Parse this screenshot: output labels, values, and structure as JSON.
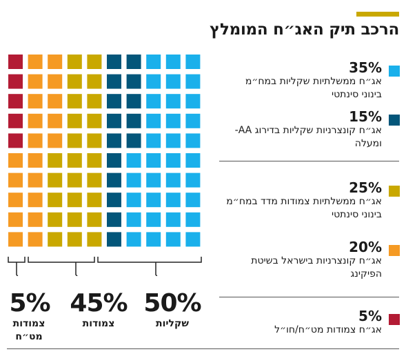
{
  "title": "הרכב תיק האג״ח המומלץ",
  "colors": {
    "accent": "#c9a800",
    "light_blue": "#1ab0eb",
    "dark_blue": "#03567a",
    "mustard": "#c9a800",
    "orange": "#f59a23",
    "crimson": "#b31b34"
  },
  "legend": [
    {
      "pct": "35%",
      "desc": "אג״ח ממשלתיות שקליות במח״מ בינוני סינתטי",
      "color": "#1ab0eb"
    },
    {
      "pct": "15%",
      "desc": "אג״ח קונצרניות שקליות בדירוג AA- ומעלה",
      "color": "#03567a"
    },
    {
      "pct": "25%",
      "desc": "אג״ח ממשלתיות צמודות מדד במח״מ בינוני סינתטי",
      "color": "#c9a800"
    },
    {
      "pct": "20%",
      "desc": "אג״ח קונצרניות בישראל בשיטת הפיקינג",
      "color": "#f59a23"
    },
    {
      "pct": "5%",
      "desc": "אג״ח צמודות מט״ח/חו״ל",
      "color": "#b31b34"
    }
  ],
  "groups": [
    {
      "pct": "50%",
      "label": "שקליות"
    },
    {
      "pct": "45%",
      "label": "צמודות"
    },
    {
      "pct": "5%",
      "label": "צמודות מט״ח"
    }
  ],
  "chart_data": {
    "type": "waffle",
    "grid": {
      "rows": 10,
      "cols": 10
    },
    "title": "הרכב תיק האג״ח המומלץ",
    "series": [
      {
        "name": "אג״ח ממשלתיות שקליות במח״מ בינוני סינתטי",
        "value": 35,
        "color": "#1ab0eb"
      },
      {
        "name": "אג״ח קונצרניות שקליות בדירוג AA- ומעלה",
        "value": 15,
        "color": "#03567a"
      },
      {
        "name": "אג״ח ממשלתיות צמודות מדד במח״מ בינוני סינתטי",
        "value": 25,
        "color": "#c9a800"
      },
      {
        "name": "אג״ח קונצרניות בישראל בשיטת הפיקינג",
        "value": 20,
        "color": "#f59a23"
      },
      {
        "name": "אג״ח צמודות מט״ח/חו״ל",
        "value": 5,
        "color": "#b31b34"
      }
    ],
    "groups": [
      {
        "label": "שקליות",
        "value": 50
      },
      {
        "label": "צמודות",
        "value": 45
      },
      {
        "label": "צמודות מט״ח",
        "value": 5
      }
    ]
  }
}
